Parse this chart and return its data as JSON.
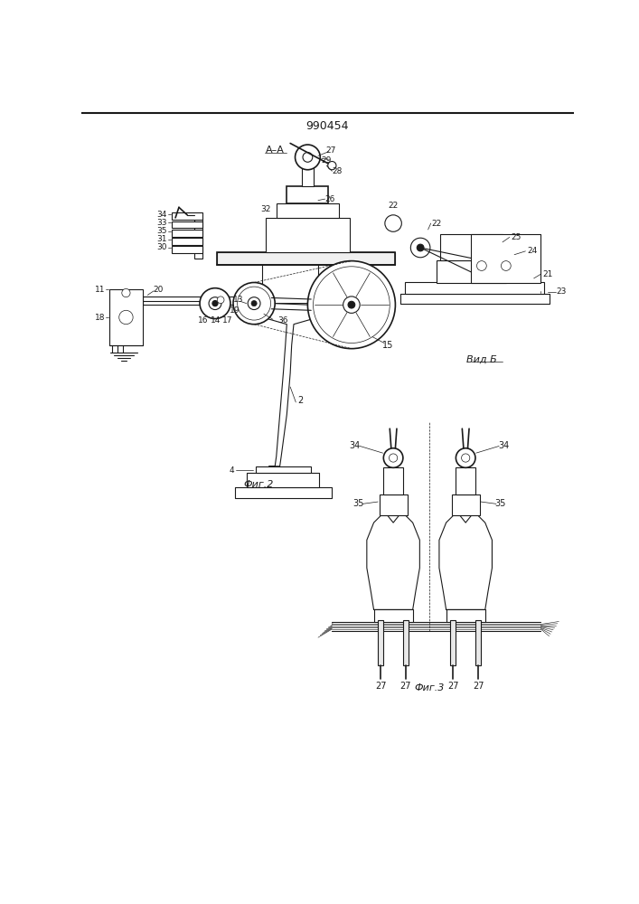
{
  "title": "990454",
  "bg_color": "#ffffff",
  "line_color": "#1a1a1a",
  "fig2_label": "Фиг.2",
  "fig3_label": "Фиг.3",
  "view_label": "Вид Б",
  "section_label": "А–А"
}
